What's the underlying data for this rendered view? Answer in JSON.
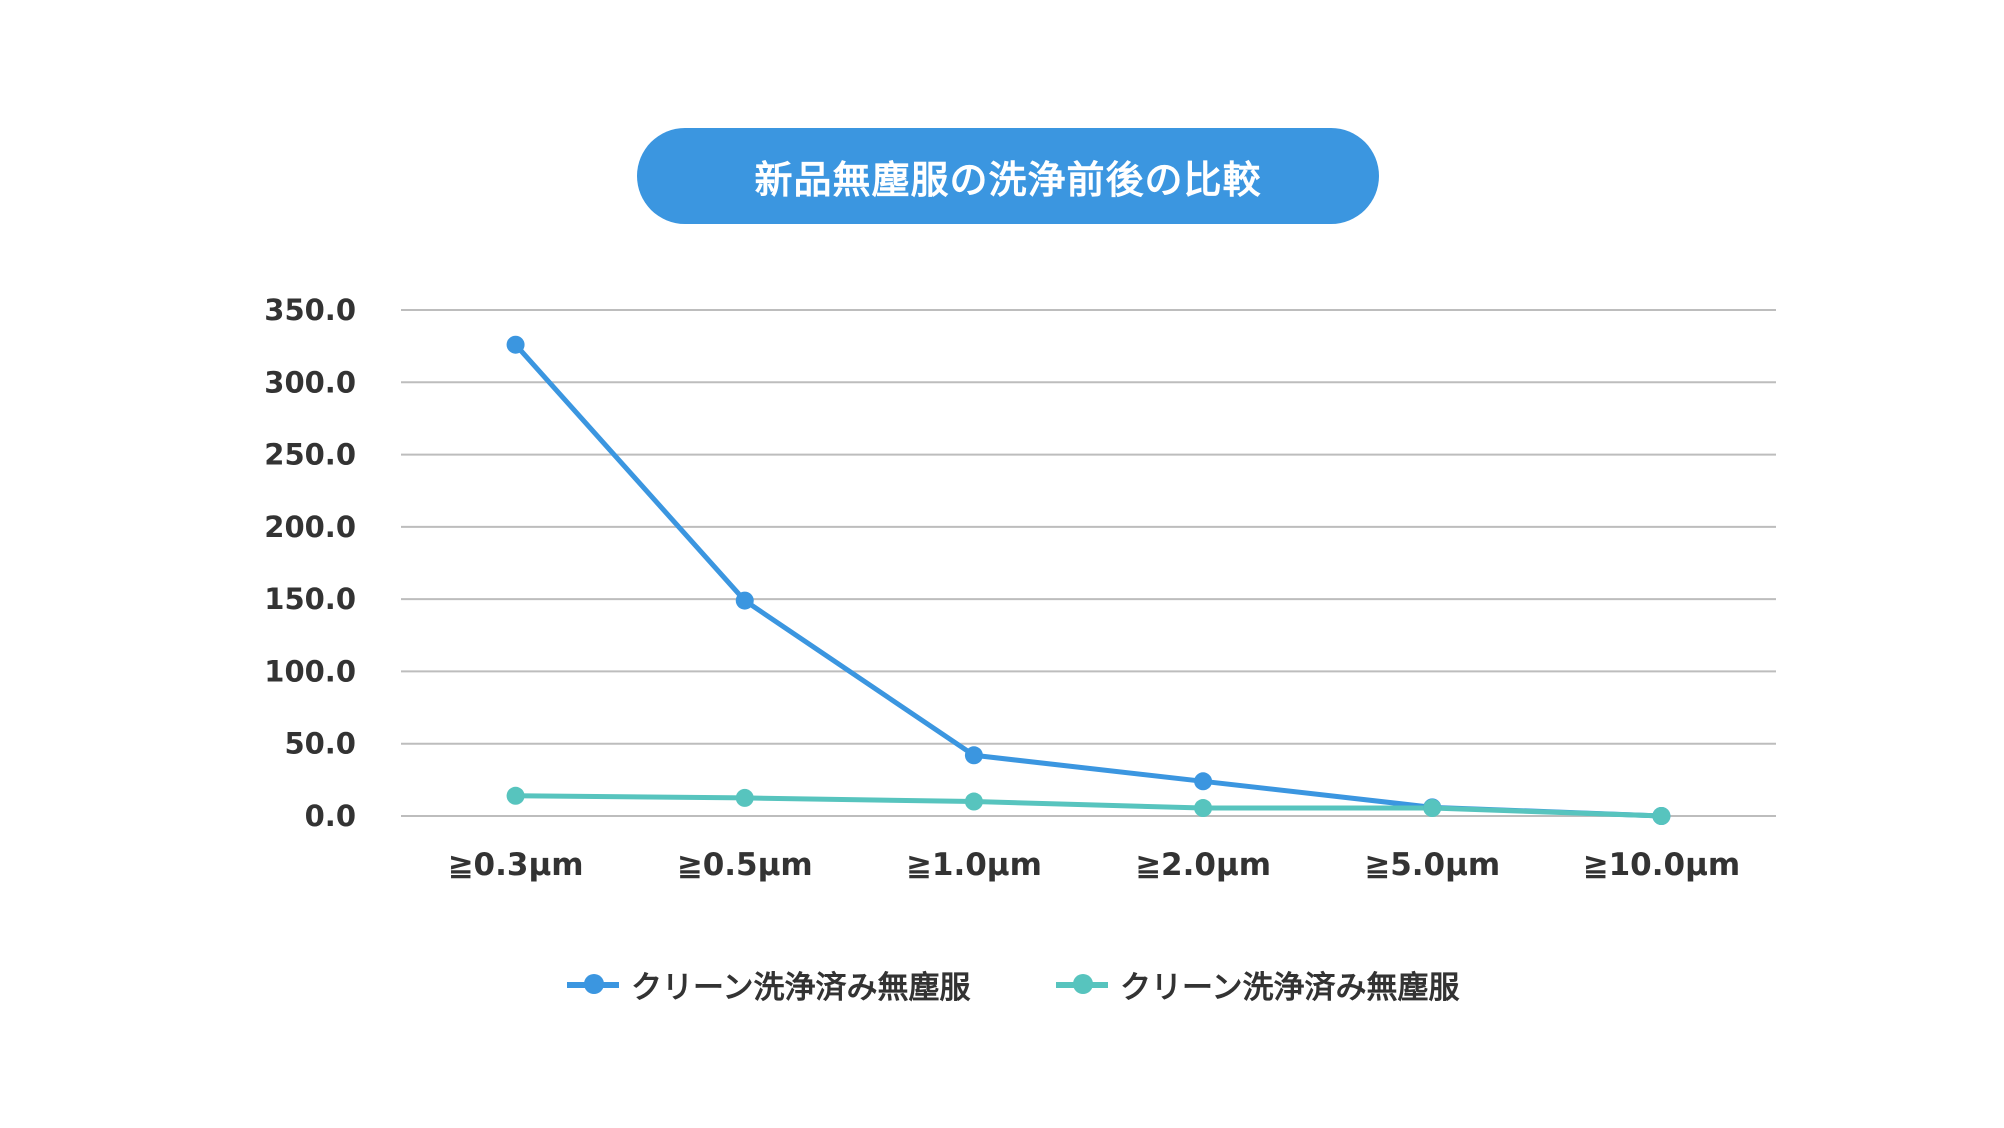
{
  "chart_data": {
    "type": "line",
    "title": "新品無塵服の洗浄前後の比較",
    "xlabel": "",
    "ylabel": "",
    "categories": [
      "≧0.3µm",
      "≧0.5µm",
      "≧1.0µm",
      "≧2.0µm",
      "≧5.0µm",
      "≧10.0µm"
    ],
    "ylim": [
      0,
      350
    ],
    "yticks": [
      "0.0",
      "50.0",
      "100.0",
      "150.0",
      "200.0",
      "250.0",
      "300.0",
      "350.0"
    ],
    "grid": true,
    "legend_position": "bottom",
    "series": [
      {
        "name": "クリーン洗浄済み無塵服",
        "color": "#3b96e0",
        "values": [
          326,
          149,
          42,
          24,
          6,
          0
        ]
      },
      {
        "name": "クリーン洗浄済み無塵服",
        "color": "#57c4be",
        "values": [
          14,
          12.5,
          10,
          5.5,
          5.5,
          0
        ]
      }
    ]
  }
}
